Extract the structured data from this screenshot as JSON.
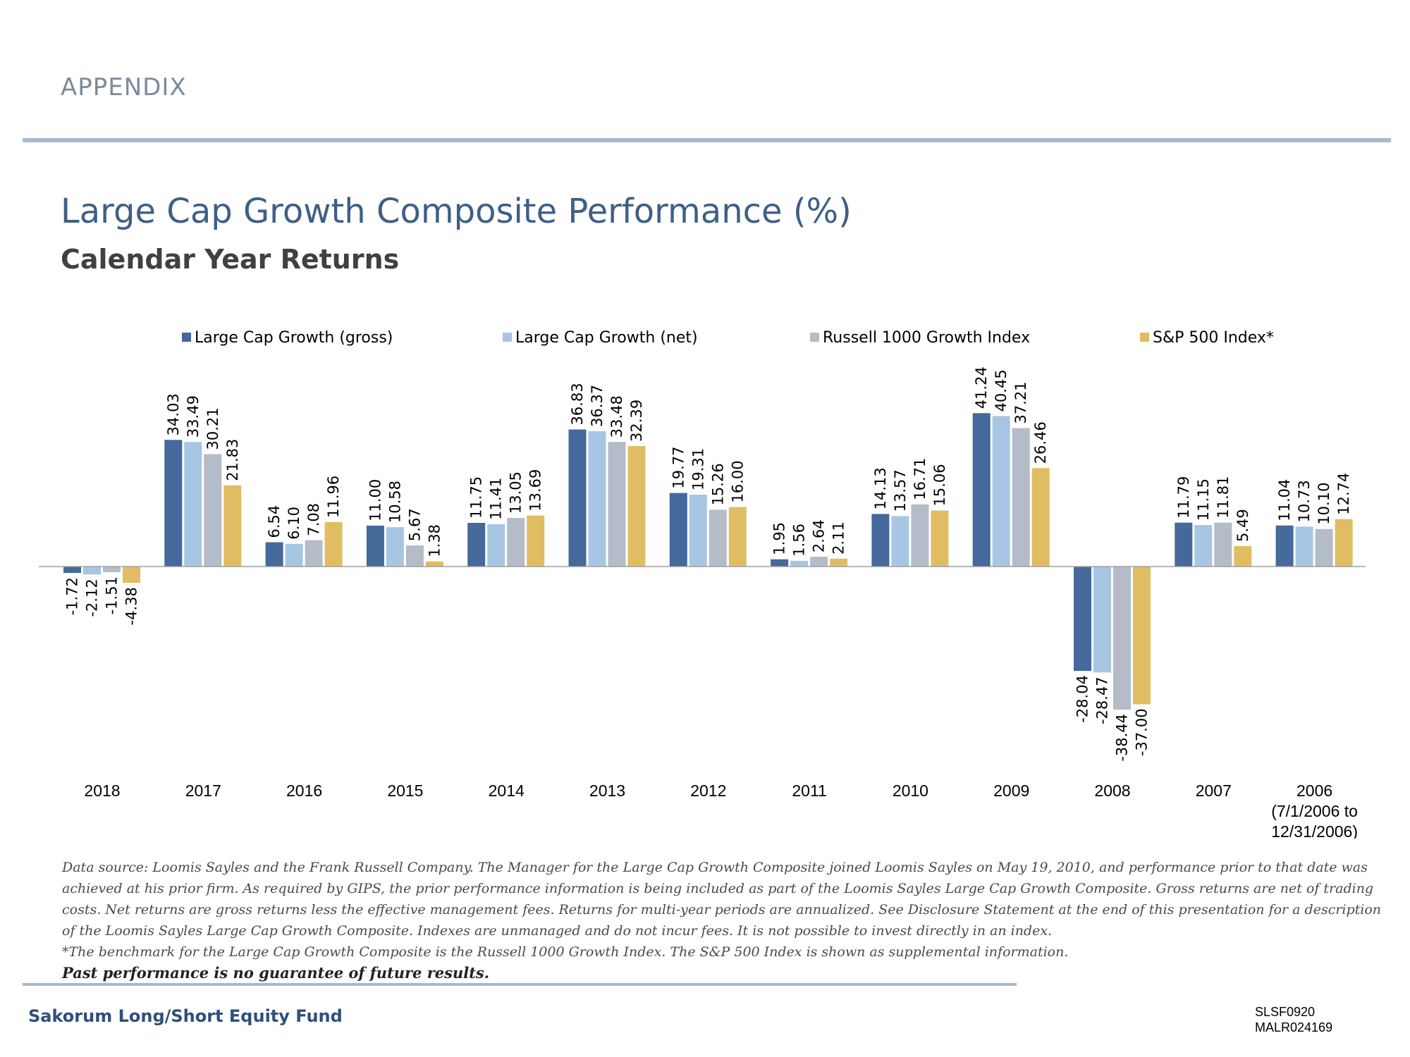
{
  "header": {
    "section": "APPENDIX"
  },
  "title": "Large Cap Growth Composite Performance (%)",
  "subtitle": "Calendar Year Returns",
  "colors": {
    "gross": "#44699a",
    "net": "#a7c6e4",
    "russell": "#b4bcc9",
    "sp500": "#e0bd63",
    "axis": "#a0a0a0"
  },
  "chart_data": {
    "type": "bar",
    "categories": [
      "2018",
      "2017",
      "2016",
      "2015",
      "2014",
      "2013",
      "2012",
      "2011",
      "2010",
      "2009",
      "2008",
      "2007",
      "2006"
    ],
    "category_notes": [
      "",
      "",
      "",
      "",
      "",
      "",
      "",
      "",
      "",
      "",
      "",
      "",
      "(7/1/2006 to 12/31/2006)"
    ],
    "series": [
      {
        "name": "Large Cap Growth (gross)",
        "values": [
          -1.72,
          34.03,
          6.54,
          11.0,
          11.75,
          36.83,
          19.77,
          1.95,
          14.13,
          41.24,
          -28.04,
          11.79,
          11.04
        ]
      },
      {
        "name": "Large Cap Growth (net)",
        "values": [
          -2.12,
          33.49,
          6.1,
          10.58,
          11.41,
          36.37,
          19.31,
          1.56,
          13.57,
          40.45,
          -28.47,
          11.15,
          10.73
        ]
      },
      {
        "name": "Russell 1000 Growth Index",
        "values": [
          -1.51,
          30.21,
          7.08,
          5.67,
          13.05,
          33.48,
          15.26,
          2.64,
          16.71,
          37.21,
          -38.44,
          11.81,
          10.1
        ]
      },
      {
        "name": "S&P 500 Index*",
        "values": [
          -4.38,
          21.83,
          11.96,
          1.38,
          13.69,
          32.39,
          16.0,
          2.11,
          15.06,
          26.46,
          -37.0,
          5.49,
          12.74
        ]
      }
    ],
    "ylim": [
      -40,
      45
    ],
    "grid": false,
    "legend": "top",
    "data_labels": "rotated, outside bar end"
  },
  "footnote": {
    "text": "Data source: Loomis Sayles and the Frank Russell Company. The Manager for the Large Cap Growth Composite joined Loomis Sayles on May 19, 2010, and performance prior to that date was achieved at his prior firm. As required by GIPS, the prior performance information is being included as part of the Loomis Sayles Large Cap Growth Composite. Gross returns are net of trading costs. Net returns are gross returns less the effective management fees. Returns for multi-year periods are annualized. See Disclosure Statement at the end of this presentation for a description of the Loomis Sayles Large Cap Growth Composite. Indexes are unmanaged and do not incur fees. It is not possible to invest directly in an index.",
    "benchmark": "*The benchmark for the Large Cap Growth Composite is the Russell 1000 Growth Index. The S&P 500 Index is shown as supplemental information.",
    "past": "Past performance is no guarantee of future results."
  },
  "footer": {
    "fund": "Sakorum Long/Short Equity Fund",
    "code1": "SLSF0920",
    "code2": "MALR024169"
  }
}
